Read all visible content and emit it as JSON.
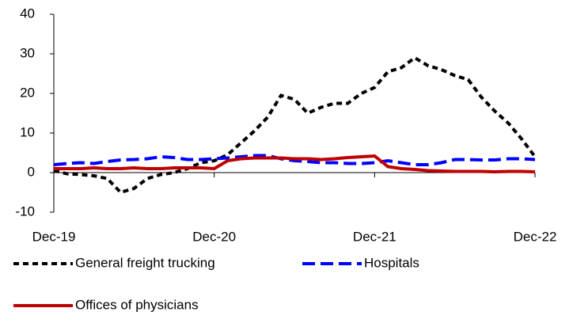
{
  "chart_data": {
    "type": "line",
    "categories": [
      "Dec-19",
      null,
      null,
      null,
      null,
      null,
      null,
      null,
      null,
      null,
      null,
      null,
      "Dec-20",
      null,
      null,
      null,
      null,
      null,
      null,
      null,
      null,
      null,
      null,
      null,
      "Dec-21",
      null,
      null,
      null,
      null,
      null,
      null,
      null,
      null,
      null,
      null,
      null,
      "Dec-22"
    ],
    "series": [
      {
        "name": "General freight trucking",
        "color": "#000000",
        "line_style": "dashed",
        "values": [
          0.5,
          -0.3,
          -0.5,
          -0.8,
          -1.5,
          -5,
          -4,
          -1.5,
          -0.5,
          0,
          1,
          2.5,
          3,
          4.5,
          7.5,
          10.5,
          14,
          19.5,
          18.5,
          15,
          16.5,
          17.5,
          17.5,
          20,
          21.5,
          25.5,
          26.5,
          29,
          27,
          26,
          24.5,
          23.5,
          19,
          15.5,
          12.5,
          8.5,
          4
        ]
      },
      {
        "name": "Hospitals",
        "color": "#0000ff",
        "line_style": "dashed",
        "values": [
          2,
          2.3,
          2.5,
          2.3,
          2.8,
          3.2,
          3.3,
          3.5,
          4,
          3.8,
          3.3,
          3.3,
          3.5,
          3.7,
          4,
          4.3,
          4.3,
          3.5,
          3,
          2.8,
          2.5,
          2.5,
          2.3,
          2.3,
          2.5,
          3,
          2.5,
          2,
          2,
          2.5,
          3.3,
          3.3,
          3.2,
          3.2,
          3.5,
          3.5,
          3.3
        ]
      },
      {
        "name": "Offices of physicians",
        "color": "#c00000",
        "line_style": "solid",
        "values": [
          1,
          1,
          1,
          1.2,
          1,
          1,
          1.2,
          1,
          1,
          1.2,
          1.2,
          1.2,
          1,
          3,
          3.5,
          3.7,
          3.7,
          3.7,
          3.5,
          3.5,
          3.3,
          3.5,
          3.8,
          4,
          4.2,
          1.5,
          1,
          0.8,
          0.5,
          0.4,
          0.3,
          0.3,
          0.3,
          0.2,
          0.3,
          0.3,
          0.2
        ]
      }
    ],
    "ylim": [
      -10,
      40
    ],
    "yticks": [
      -10,
      0,
      10,
      20,
      30,
      40
    ],
    "grid": false
  }
}
